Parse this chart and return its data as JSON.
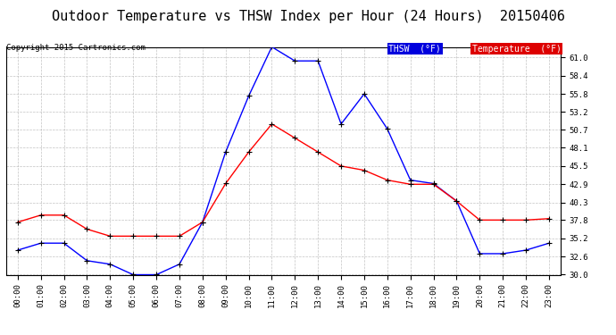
{
  "title": "Outdoor Temperature vs THSW Index per Hour (24 Hours)  20150406",
  "copyright": "Copyright 2015 Cartronics.com",
  "background_color": "#ffffff",
  "plot_bg_color": "#ffffff",
  "grid_color": "#aaaaaa",
  "hours": [
    "00:00",
    "01:00",
    "02:00",
    "03:00",
    "04:00",
    "05:00",
    "06:00",
    "07:00",
    "08:00",
    "09:00",
    "10:00",
    "11:00",
    "12:00",
    "13:00",
    "14:00",
    "15:00",
    "16:00",
    "17:00",
    "18:00",
    "19:00",
    "20:00",
    "21:00",
    "22:00",
    "23:00"
  ],
  "thsw": [
    33.5,
    34.5,
    34.5,
    32.0,
    31.5,
    30.0,
    30.0,
    31.5,
    37.5,
    47.5,
    55.5,
    62.5,
    60.5,
    60.5,
    51.5,
    55.8,
    50.8,
    43.5,
    43.0,
    40.5,
    33.0,
    33.0,
    33.5,
    34.5
  ],
  "temperature": [
    37.5,
    38.5,
    38.5,
    36.5,
    35.5,
    35.5,
    35.5,
    35.5,
    37.5,
    43.0,
    47.5,
    51.5,
    49.5,
    47.5,
    45.5,
    44.9,
    43.5,
    42.9,
    42.9,
    40.5,
    37.8,
    37.8,
    37.8,
    38.0
  ],
  "ylim": [
    30.0,
    62.5
  ],
  "yticks": [
    30.0,
    32.6,
    35.2,
    37.8,
    40.3,
    42.9,
    45.5,
    48.1,
    50.7,
    53.2,
    55.8,
    58.4,
    61.0
  ],
  "thsw_color": "#0000ff",
  "temp_color": "#ff0000",
  "marker_color": "#000000",
  "title_fontsize": 11,
  "legend_thsw_bg": "#0000dd",
  "legend_temp_bg": "#dd0000"
}
